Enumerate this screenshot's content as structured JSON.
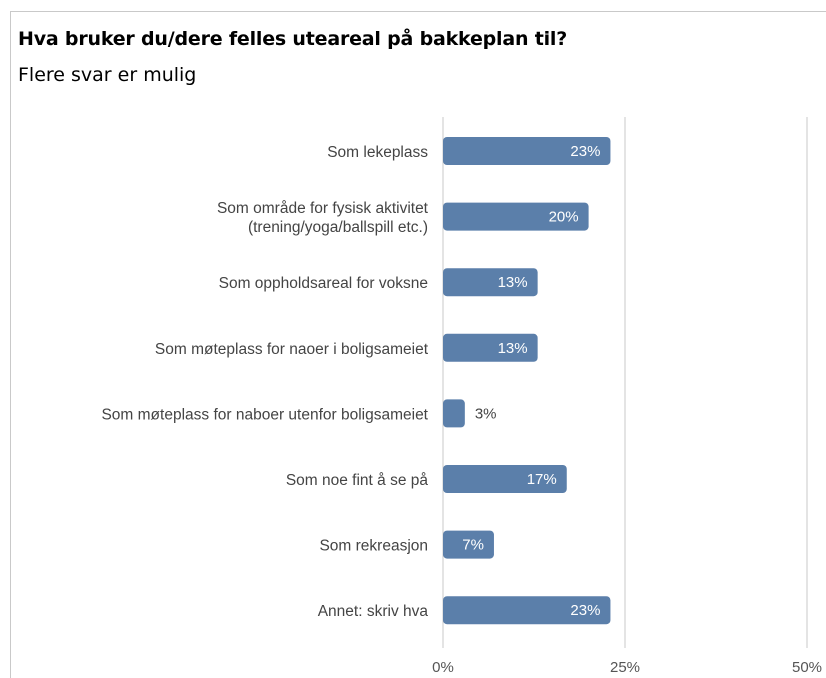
{
  "title": "Hva bruker du/dere felles uteareal på bakkeplan til?",
  "subtitle": "Flere svar er mulig",
  "colors": {
    "bar": "#5b7faa",
    "grid": "#c8c8c8",
    "axis_text": "#555555",
    "label_inside": "#ffffff",
    "label_outside": "#444444"
  },
  "chart_data": {
    "type": "bar",
    "orientation": "horizontal",
    "categories": [
      [
        "Som lekeplass"
      ],
      [
        "Som område for fysisk aktivitet",
        "(trening/yoga/ballspill etc.)"
      ],
      [
        "Som oppholdsareal for voksne"
      ],
      [
        "Som møteplass for naoer i boligsameiet"
      ],
      [
        "Som møteplass for naboer utenfor boligsameiet"
      ],
      [
        "Som noe fint å se på"
      ],
      [
        "Som rekreasjon"
      ],
      [
        "Annet: skriv hva"
      ]
    ],
    "values": [
      23,
      20,
      13,
      13,
      3,
      17,
      7,
      23
    ],
    "value_labels": [
      "23%",
      "20%",
      "13%",
      "13%",
      "3%",
      "17%",
      "7%",
      "23%"
    ],
    "xlim": [
      0,
      50
    ],
    "xticks": [
      0,
      25,
      50
    ],
    "xtick_labels": [
      "0%",
      "25%",
      "50%"
    ],
    "grid": true
  }
}
